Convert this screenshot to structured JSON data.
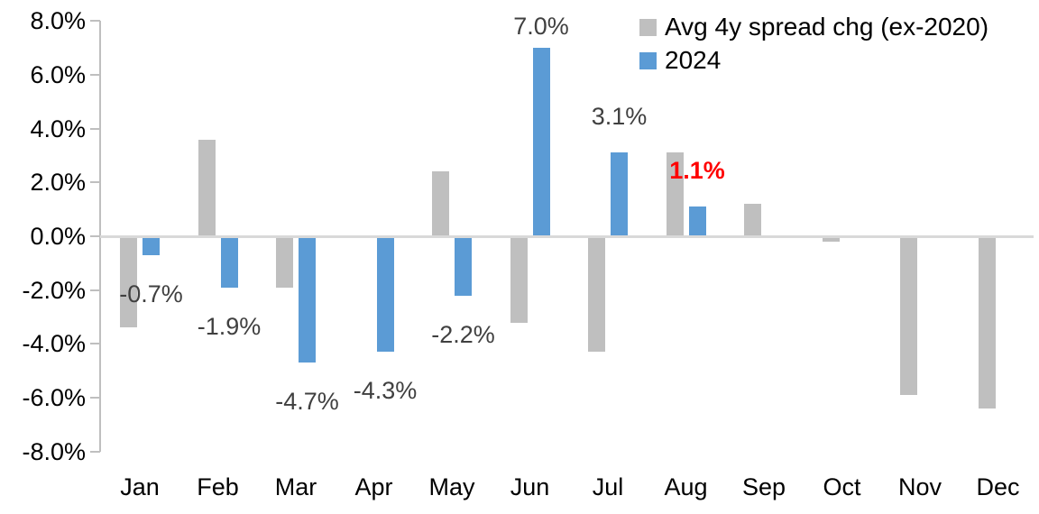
{
  "chart_data": {
    "type": "bar",
    "title": "",
    "categories": [
      "Jan",
      "Feb",
      "Mar",
      "Apr",
      "May",
      "Jun",
      "Jul",
      "Aug",
      "Sep",
      "Oct",
      "Nov",
      "Dec"
    ],
    "series": [
      {
        "name": "Avg 4y spread chg (ex-2020)",
        "color": "#BFBFBF",
        "values": [
          -3.4,
          3.6,
          -1.9,
          0.0,
          2.4,
          -3.2,
          -4.3,
          3.1,
          1.2,
          -0.2,
          -5.9,
          -6.4
        ]
      },
      {
        "name": "2024",
        "color": "#5B9BD5",
        "values": [
          -0.7,
          -1.9,
          -4.7,
          -4.3,
          -2.2,
          7.0,
          3.1,
          1.1,
          null,
          null,
          null,
          null
        ]
      }
    ],
    "data_labels": [
      {
        "category": "Jan",
        "series": "2024",
        "text": "-0.7%",
        "color": "#404040",
        "bold": false
      },
      {
        "category": "Feb",
        "series": "2024",
        "text": "-1.9%",
        "color": "#404040",
        "bold": false
      },
      {
        "category": "Mar",
        "series": "2024",
        "text": "-4.7%",
        "color": "#404040",
        "bold": false
      },
      {
        "category": "Apr",
        "series": "2024",
        "text": "-4.3%",
        "color": "#404040",
        "bold": false
      },
      {
        "category": "May",
        "series": "2024",
        "text": "-2.2%",
        "color": "#404040",
        "bold": false
      },
      {
        "category": "Jun",
        "series": "2024",
        "text": "7.0%",
        "color": "#404040",
        "bold": false
      },
      {
        "category": "Jul",
        "series": "2024",
        "text": "3.1%",
        "color": "#404040",
        "bold": false
      },
      {
        "category": "Aug",
        "series": "2024",
        "text": "1.1%",
        "color": "#FF0000",
        "bold": true
      }
    ],
    "y_axis": {
      "unit": "%",
      "min": -8,
      "max": 8,
      "tick_values": [
        8,
        6,
        4,
        2,
        0,
        -2,
        -4,
        -6,
        -8
      ],
      "tick_labels": [
        "8.0%",
        "6.0%",
        "4.0%",
        "2.0%",
        "0.0%",
        "-2.0%",
        "-4.0%",
        "-6.0%",
        "-8.0%"
      ]
    },
    "legend_position": "top-right",
    "grid": false,
    "colors": {
      "axis_line": "#BFBFBF",
      "zero_line": "#D9D9D9",
      "tick_text": "#000000",
      "data_label_default": "#404040",
      "highlight": "#FF0000"
    }
  }
}
